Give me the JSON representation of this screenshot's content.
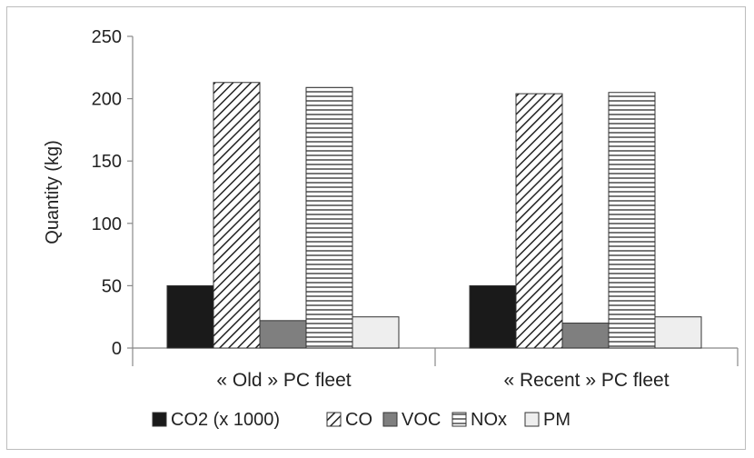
{
  "chart_data": {
    "type": "bar",
    "title": "",
    "xlabel": "",
    "ylabel": "Quantity (kg)",
    "ylim": [
      0,
      250
    ],
    "yticks": [
      "0",
      "50",
      "100",
      "150",
      "200",
      "250"
    ],
    "grid": false,
    "legend_position": "bottom",
    "categories": [
      "« Old » PC fleet",
      "« Recent » PC fleet"
    ],
    "series": [
      {
        "name": "CO2 (x 1000)",
        "values": [
          50,
          50
        ],
        "fill": "solid-black",
        "color": "#1a1a1a"
      },
      {
        "name": "CO",
        "values": [
          213,
          204
        ],
        "fill": "diagonal-hatch",
        "color": "#222222"
      },
      {
        "name": "VOC",
        "values": [
          22,
          20
        ],
        "fill": "solid-gray",
        "color": "#7f7f7f"
      },
      {
        "name": "NOx",
        "values": [
          209,
          205
        ],
        "fill": "horizontal-lines",
        "color": "#444444"
      },
      {
        "name": "PM",
        "values": [
          25,
          25
        ],
        "fill": "light",
        "color": "#eeeeee"
      }
    ]
  }
}
